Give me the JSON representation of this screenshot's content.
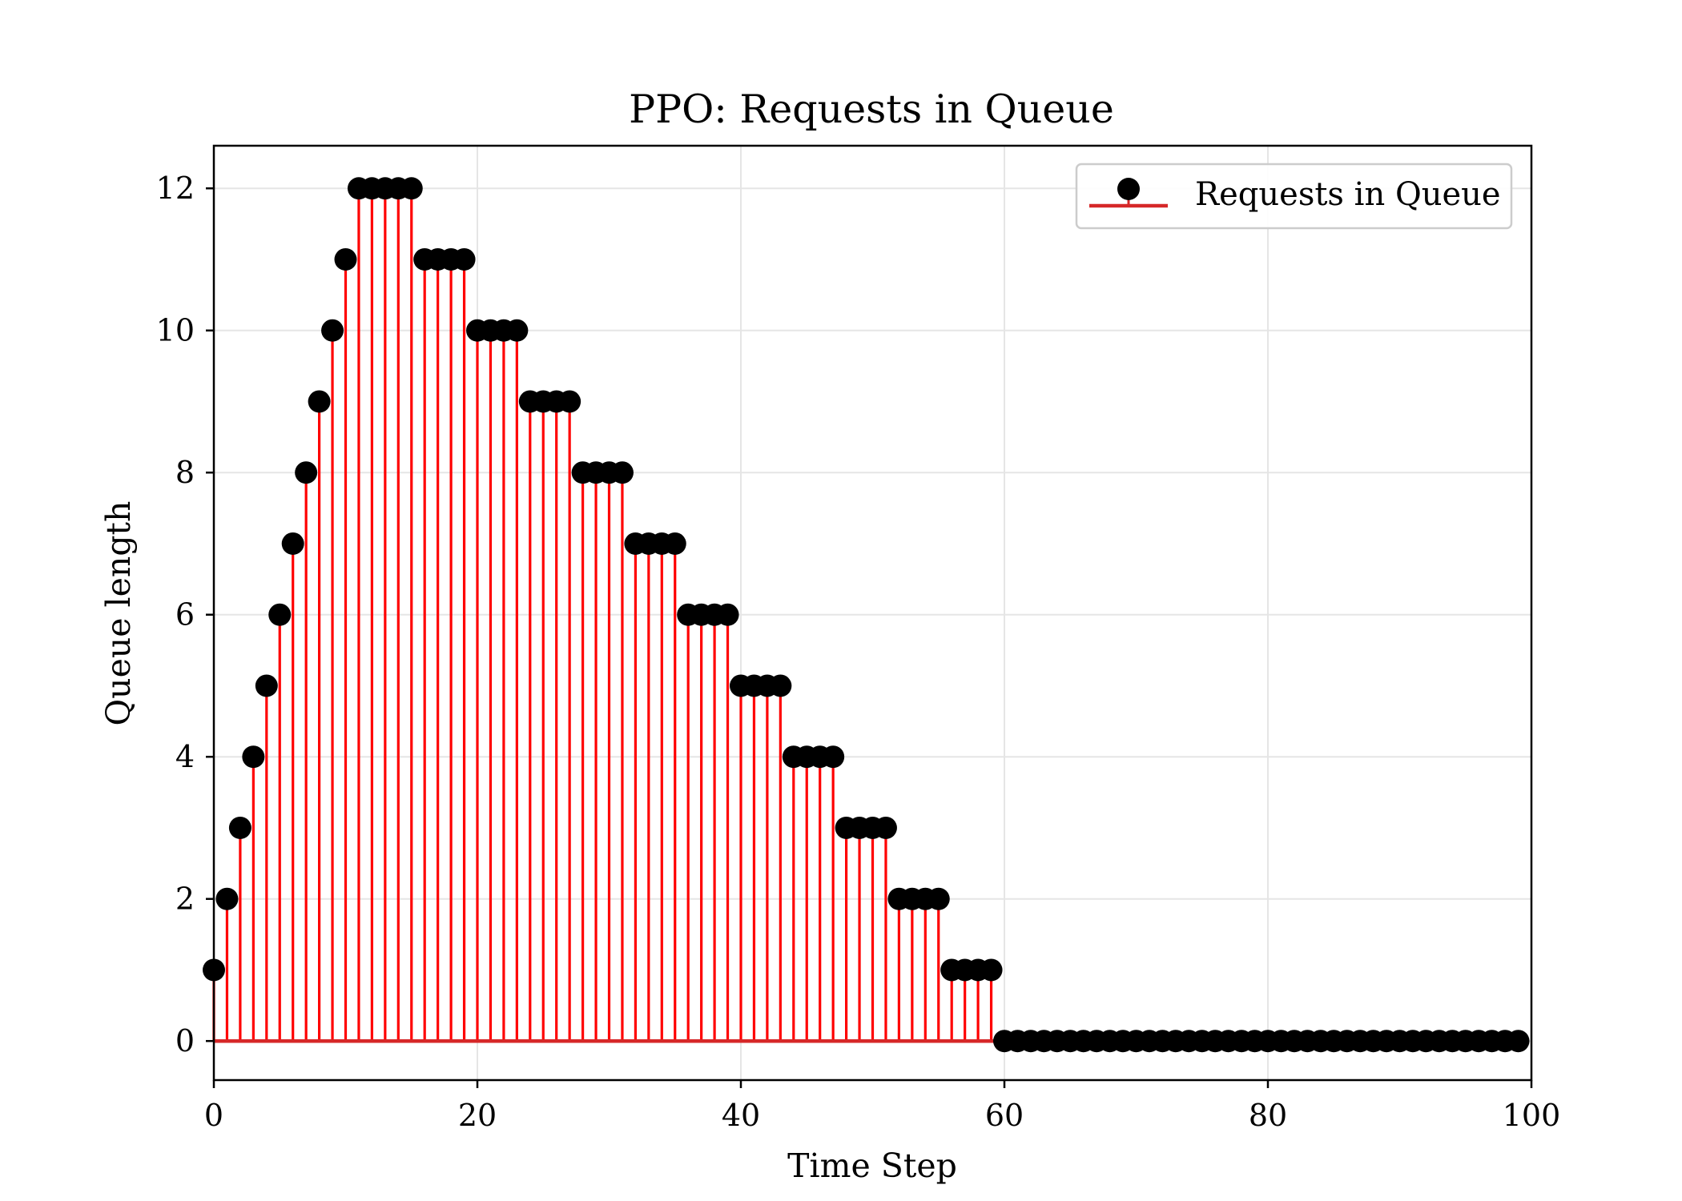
{
  "chart_data": {
    "type": "stem",
    "title": "PPO: Requests in Queue",
    "xlabel": "Time Step",
    "ylabel": "Queue length",
    "xlim": [
      0,
      100
    ],
    "ylim": [
      -0.55,
      12.6
    ],
    "xticks": [
      0,
      20,
      40,
      60,
      80,
      100
    ],
    "yticks": [
      0,
      2,
      4,
      6,
      8,
      10,
      12
    ],
    "grid": true,
    "legend": {
      "position": "top-right",
      "entries": [
        "Requests in Queue"
      ]
    },
    "series": [
      {
        "name": "Requests in Queue",
        "x": [
          0,
          1,
          2,
          3,
          4,
          5,
          6,
          7,
          8,
          9,
          10,
          11,
          12,
          13,
          14,
          15,
          16,
          17,
          18,
          19,
          20,
          21,
          22,
          23,
          24,
          25,
          26,
          27,
          28,
          29,
          30,
          31,
          32,
          33,
          34,
          35,
          36,
          37,
          38,
          39,
          40,
          41,
          42,
          43,
          44,
          45,
          46,
          47,
          48,
          49,
          50,
          51,
          52,
          53,
          54,
          55,
          56,
          57,
          58,
          59,
          60,
          61,
          62,
          63,
          64,
          65,
          66,
          67,
          68,
          69,
          70,
          71,
          72,
          73,
          74,
          75,
          76,
          77,
          78,
          79,
          80,
          81,
          82,
          83,
          84,
          85,
          86,
          87,
          88,
          89,
          90,
          91,
          92,
          93,
          94,
          95,
          96,
          97,
          98,
          99
        ],
        "values": [
          1,
          2,
          3,
          4,
          5,
          6,
          7,
          8,
          9,
          10,
          11,
          12,
          12,
          12,
          12,
          12,
          11,
          11,
          11,
          11,
          10,
          10,
          10,
          10,
          9,
          9,
          9,
          9,
          8,
          8,
          8,
          8,
          7,
          7,
          7,
          7,
          6,
          6,
          6,
          6,
          5,
          5,
          5,
          5,
          4,
          4,
          4,
          4,
          3,
          3,
          3,
          3,
          2,
          2,
          2,
          2,
          1,
          1,
          1,
          1,
          0,
          0,
          0,
          0,
          0,
          0,
          0,
          0,
          0,
          0,
          0,
          0,
          0,
          0,
          0,
          0,
          0,
          0,
          0,
          0,
          0,
          0,
          0,
          0,
          0,
          0,
          0,
          0,
          0,
          0,
          0,
          0,
          0,
          0,
          0,
          0,
          0,
          0,
          0,
          0
        ]
      }
    ],
    "colors": {
      "stem": "#ff0000",
      "marker": "#000000",
      "baseline": "#d62728",
      "grid": "#e5e5e5"
    }
  }
}
